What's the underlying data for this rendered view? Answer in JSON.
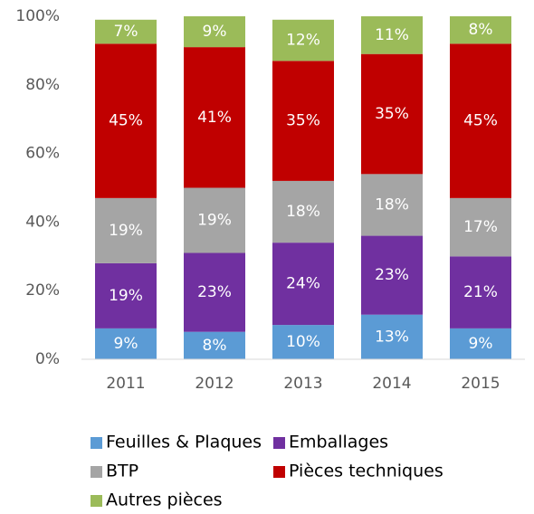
{
  "chart_data": {
    "type": "bar",
    "stacked": true,
    "categories": [
      "2011",
      "2012",
      "2013",
      "2014",
      "2015"
    ],
    "series": [
      {
        "name": "Feuilles & Plaques",
        "color": "#5b9bd5",
        "values": [
          9,
          8,
          10,
          13,
          9
        ],
        "value_labels": [
          "9%",
          "8%",
          "10%",
          "13%",
          "9%"
        ]
      },
      {
        "name": "Emballages",
        "color": "#7030a0",
        "values": [
          19,
          23,
          24,
          23,
          21
        ],
        "value_labels": [
          "19%",
          "23%",
          "24%",
          "23%",
          "21%"
        ]
      },
      {
        "name": "BTP",
        "color": "#a5a5a5",
        "values": [
          19,
          19,
          18,
          18,
          17
        ],
        "value_labels": [
          "19%",
          "19%",
          "18%",
          "18%",
          "17%"
        ]
      },
      {
        "name": "Pièces techniques",
        "color": "#c00000",
        "values": [
          45,
          41,
          35,
          35,
          45
        ],
        "value_labels": [
          "45%",
          "41%",
          "35%",
          "35%",
          "45%"
        ]
      },
      {
        "name": "Autres pièces",
        "color": "#9bbb59",
        "values": [
          7,
          9,
          12,
          11,
          8
        ],
        "value_labels": [
          "7%",
          "9%",
          "12%",
          "11%",
          "8%"
        ]
      }
    ],
    "ylim": [
      0,
      100
    ],
    "yticks": [
      {
        "value": 0,
        "label": "0%"
      },
      {
        "value": 20,
        "label": "20%"
      },
      {
        "value": 40,
        "label": "40%"
      },
      {
        "value": 60,
        "label": "60%"
      },
      {
        "value": 80,
        "label": "80%"
      },
      {
        "value": 100,
        "label": "100%"
      }
    ],
    "grid": false,
    "legend": "bottom"
  }
}
